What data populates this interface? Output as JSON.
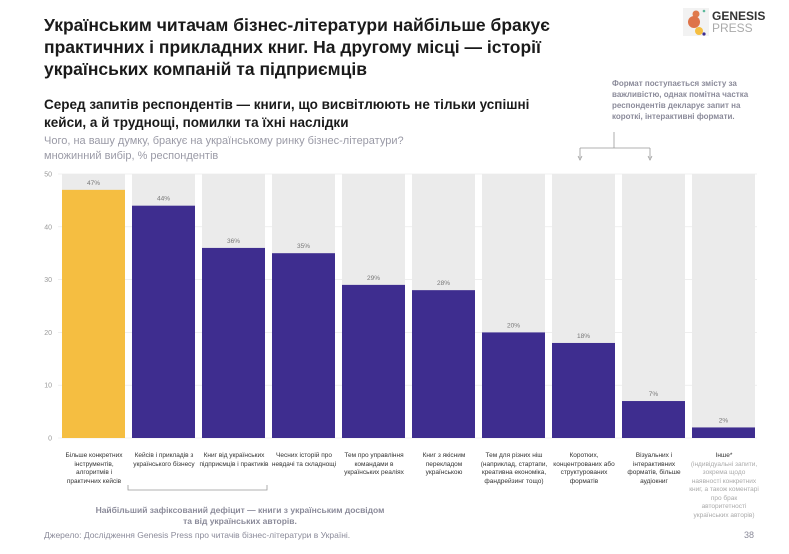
{
  "title": "Українським читачам бізнес-літератури найбільше бракує практичних і прикладних книг. На другому місці — історії українських компаній та підприємців",
  "subtitle": "Серед запитів респондентів — книги, що висвітлюють не тільки успішні кейси, а й труднощі, помилки та їхні наслідки",
  "question": "Чого, на вашу думку, бракує на українському ринку бізнес-літератури? множинний вибір, % респондентів",
  "logo": {
    "line1": "GENESIS",
    "line2": "PRESS"
  },
  "note": "Формат поступається змісту за важливістю, однак помітна частка респондентів декларує запит на короткі, інтерактивні формати.",
  "callout": "Найбільший зафіксований дефіцит — книги з українським досвідом та від українських авторів.",
  "source": "Джерело: Дослідження Genesis Press про читачів бізнес-літератури в Україні.",
  "page_number": "38",
  "colors": {
    "highlight": "#F5BE41",
    "bar": "#3E2D8F",
    "column_bg": "#EBEBEB"
  },
  "chart_data": {
    "type": "bar",
    "ylim": [
      0,
      50
    ],
    "yticks": [
      0,
      10,
      20,
      30,
      40,
      50
    ],
    "grid": true,
    "categories": [
      "Більше конкретних інструментів, алгоритмів і практичних кейсів",
      "Кейсів і прикладів з українського бізнесу",
      "Книг від українських підприємців і практиків",
      "Чесних історій про невдачі та складнощі",
      "Тем про управління командами в українських реаліях",
      "Книг з якісним перекладом українською",
      "Тем для різних ніш (наприклад, стартапи, креативна економіка, фандрейзинг тощо)",
      "Коротких, концентрованих або структурованих форматів",
      "Візуальних і інтерактивних форматів, більше аудіокниг",
      "Інше*"
    ],
    "category_note_last": "(індивідуальні запити, зокрема щодо наявності конкретних книг, а також коментарі про брак авторитетності українських авторів)",
    "values": [
      47,
      44,
      36,
      35,
      29,
      28,
      20,
      18,
      7,
      2
    ],
    "value_labels": [
      "47%",
      "44%",
      "36%",
      "35%",
      "29%",
      "28%",
      "20%",
      "18%",
      "7%",
      "2%"
    ],
    "highlight_index": 0
  }
}
